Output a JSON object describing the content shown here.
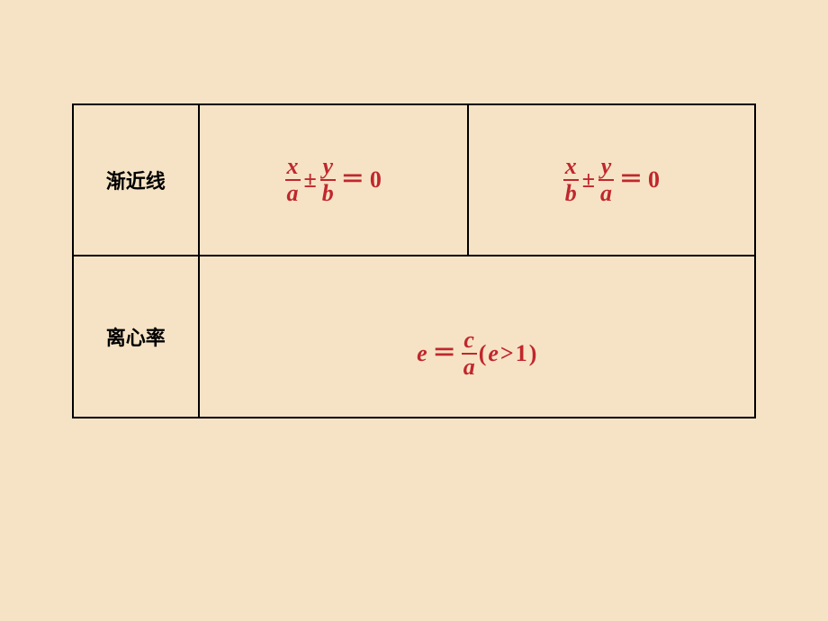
{
  "table": {
    "border_color": "#000000",
    "formula_color": "#c0272d",
    "background_color": "#f6e3c5",
    "header_fontsize": 22,
    "formula_fontsize": 26,
    "rows": [
      {
        "label": "渐近线",
        "cells": [
          {
            "frac1_num": "x",
            "frac1_den": "a",
            "op": "±",
            "frac2_num": "y",
            "frac2_den": "b",
            "eq": "＝",
            "rhs": "0"
          },
          {
            "frac1_num": "x",
            "frac1_den": "b",
            "op": "±",
            "frac2_num": "y",
            "frac2_den": "a",
            "eq": "＝",
            "rhs": "0"
          }
        ]
      },
      {
        "label": "离心率",
        "cell": {
          "lhs": "e",
          "eq": "＝",
          "frac_num": "c",
          "frac_den": "a",
          "cond_open": "(",
          "cond_var": "e",
          "cond_op": ">",
          "cond_val": "1",
          "cond_close": ")"
        }
      }
    ]
  }
}
